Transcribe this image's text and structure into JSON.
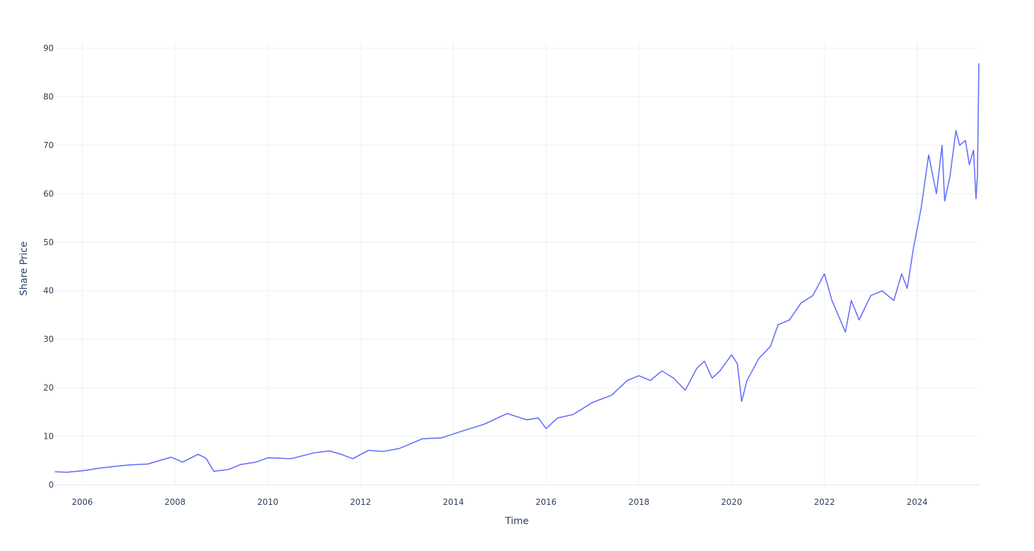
{
  "chart_data": {
    "type": "line",
    "title": "",
    "xlabel": "Time",
    "ylabel": "Share Price",
    "grid": true,
    "legend": "none",
    "line_color": "#636efa",
    "x_ticks": [
      "2006",
      "2008",
      "2010",
      "2012",
      "2014",
      "2016",
      "2018",
      "2020",
      "2022",
      "2024"
    ],
    "y_ticks": [
      0,
      10,
      20,
      30,
      40,
      50,
      60,
      70,
      80,
      90
    ],
    "xlim": [
      "2005-06-01",
      "2025-05-01"
    ],
    "ylim": [
      0,
      90
    ],
    "series": [
      {
        "x": [
          "2005-06-01",
          "2005-09-01",
          "2006-01-01",
          "2006-06-01",
          "2007-01-01",
          "2007-06-01",
          "2007-12-01",
          "2008-03-01",
          "2008-07-01",
          "2008-09-01",
          "2008-11-01",
          "2009-03-01",
          "2009-06-01",
          "2009-10-01",
          "2010-01-01",
          "2010-07-01",
          "2011-01-01",
          "2011-05-01",
          "2011-08-01",
          "2011-11-01",
          "2012-03-01",
          "2012-07-01",
          "2012-11-01",
          "2013-05-01",
          "2013-10-01",
          "2014-03-01",
          "2014-09-01",
          "2015-03-01",
          "2015-08-01",
          "2015-11-01",
          "2016-01-01",
          "2016-04-01",
          "2016-08-01",
          "2017-01-01",
          "2017-06-01",
          "2017-10-01",
          "2018-01-01",
          "2018-04-01",
          "2018-07-01",
          "2018-10-01",
          "2019-01-01",
          "2019-04-01",
          "2019-06-01",
          "2019-08-01",
          "2019-10-01",
          "2020-01-01",
          "2020-02-15",
          "2020-03-20",
          "2020-05-01",
          "2020-08-01",
          "2020-11-01",
          "2021-01-01",
          "2021-04-01",
          "2021-07-01",
          "2021-10-01",
          "2022-01-01",
          "2022-03-01",
          "2022-06-15",
          "2022-08-01",
          "2022-10-01",
          "2023-01-01",
          "2023-04-01",
          "2023-07-01",
          "2023-09-01",
          "2023-10-15",
          "2023-12-01",
          "2024-02-01",
          "2024-04-01",
          "2024-06-01",
          "2024-07-15",
          "2024-08-05",
          "2024-09-15",
          "2024-11-01",
          "2024-12-01",
          "2025-01-15",
          "2025-02-15",
          "2025-03-20",
          "2025-04-08",
          "2025-04-20",
          "2025-05-01"
        ],
        "y": [
          2.7,
          2.6,
          2.9,
          3.5,
          4.1,
          4.3,
          5.7,
          4.7,
          6.3,
          5.5,
          2.8,
          3.2,
          4.2,
          4.7,
          5.6,
          5.4,
          6.6,
          7.0,
          6.3,
          5.4,
          7.1,
          6.9,
          7.5,
          9.5,
          9.7,
          11.0,
          12.5,
          14.7,
          13.4,
          13.8,
          11.6,
          13.8,
          14.5,
          17.0,
          18.5,
          21.5,
          22.5,
          21.5,
          23.5,
          22.0,
          19.5,
          24.0,
          25.5,
          22.0,
          23.5,
          26.8,
          25.0,
          17.2,
          21.5,
          26.0,
          28.5,
          33.0,
          34.0,
          37.5,
          39.0,
          43.5,
          38.0,
          31.5,
          38.0,
          34.0,
          39.0,
          40.0,
          38.0,
          43.5,
          40.5,
          48.5,
          57.0,
          68.0,
          60.0,
          70.0,
          58.5,
          63.5,
          73.0,
          70.0,
          71.0,
          66.0,
          69.0,
          59.0,
          64.0,
          86.8
        ]
      }
    ]
  }
}
